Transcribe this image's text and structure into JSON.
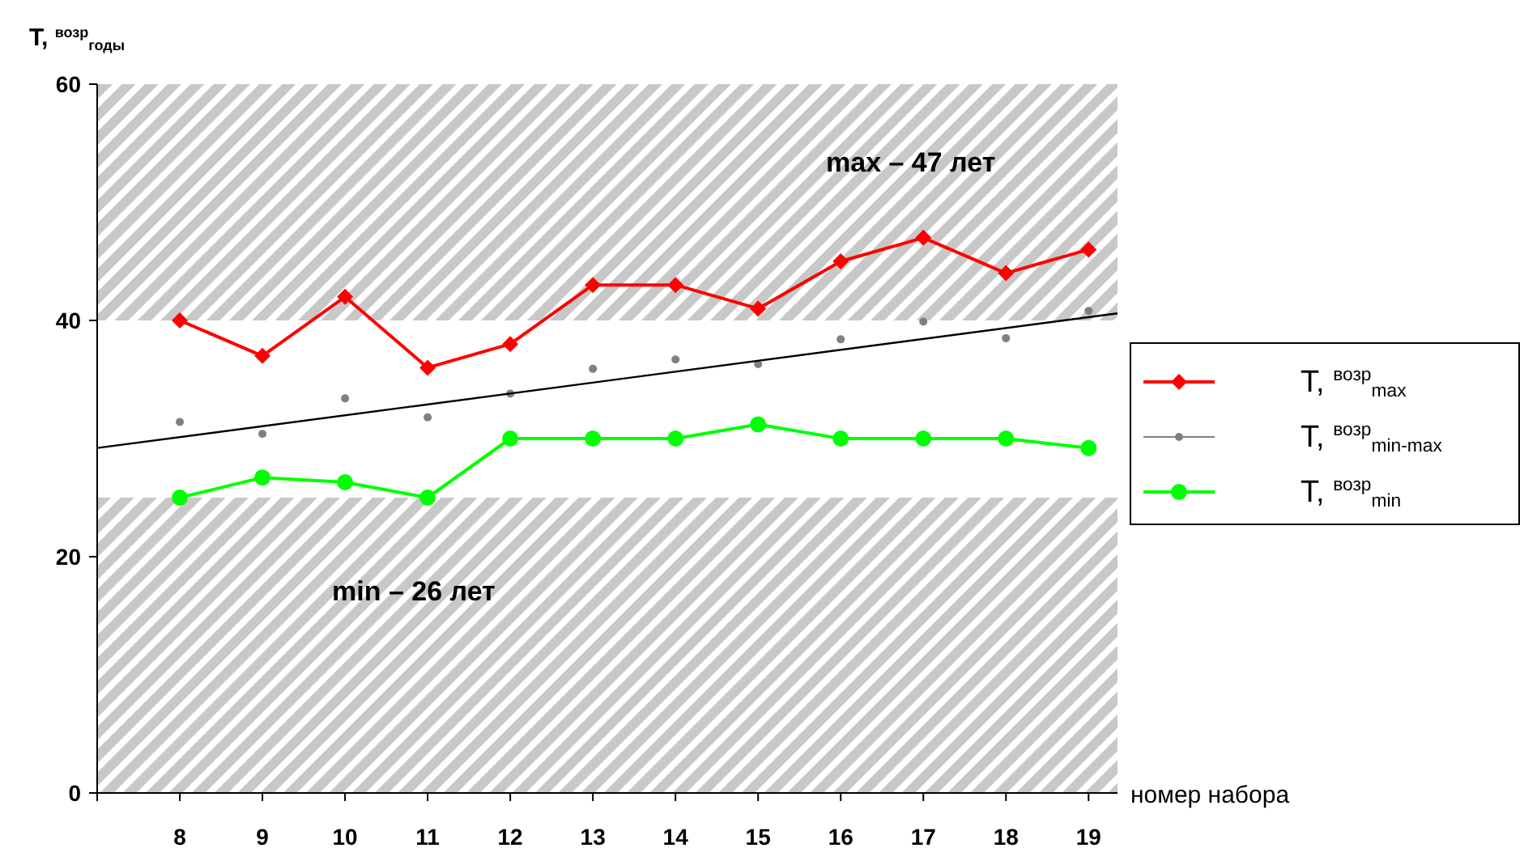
{
  "chart_data": {
    "type": "line",
    "ylabel": "T, $^{возр}$$_{годы}$",
    "xlabel": "номер набора",
    "x": [
      8,
      9,
      10,
      11,
      12,
      13,
      14,
      15,
      16,
      17,
      18,
      19
    ],
    "xlim": [
      7,
      19.35
    ],
    "xticks": [
      {
        "value": 7,
        "label": null
      },
      8,
      9,
      10,
      11,
      12,
      13,
      14,
      15,
      16,
      17,
      18,
      19
    ],
    "ylim": [
      0,
      60
    ],
    "yticks": [
      0,
      20,
      40,
      60
    ],
    "series": [
      {
        "name": "T, $^{возр}$$_{max}$",
        "color": "#ff0000",
        "marker": "diamond",
        "values": [
          40,
          37,
          42,
          36,
          38,
          43,
          43,
          41,
          45,
          47,
          44,
          46
        ]
      },
      {
        "name": "T, $^{возр}$$_{min-max}$",
        "type": "scatter",
        "color": "#808080",
        "marker": "circle",
        "values": [
          31.4,
          30.4,
          33.4,
          31.8,
          33.8,
          35.9,
          36.7,
          36.3,
          38.4,
          39.9,
          38.5,
          40.8
        ]
      },
      {
        "name": "T, $^{возр}$$_{min}$",
        "color": "#00ff00",
        "marker": "circle",
        "values": [
          25,
          26.7,
          26.3,
          25,
          30,
          30,
          30,
          31.2,
          30,
          30,
          30,
          29.2
        ]
      },
      {
        "type": "line",
        "color": "#000000",
        "marker": "none",
        "x": [
          7,
          19.35
        ],
        "values": [
          29.2,
          40.6
        ]
      }
    ],
    "bands": [
      {
        "axis": "y",
        "from": 0,
        "to": 25,
        "color": "#c8c8c8"
      },
      {
        "axis": "y",
        "from": 40,
        "to": 60,
        "color": "#c8c8c8"
      }
    ],
    "annotations": [
      "max – 47 лет",
      "min – 26 лет"
    ],
    "legend": "right",
    "grid": false
  }
}
